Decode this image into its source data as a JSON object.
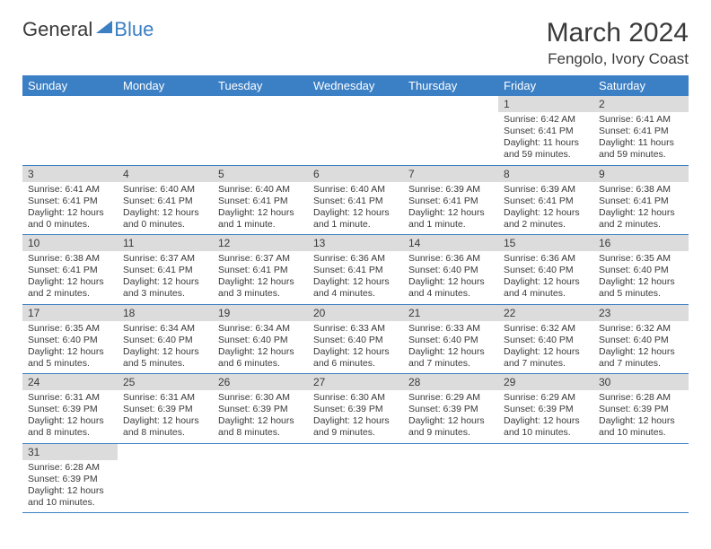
{
  "brand": {
    "part1": "General",
    "part2": "Blue"
  },
  "title": "March 2024",
  "location": "Fengolo, Ivory Coast",
  "headers": [
    "Sunday",
    "Monday",
    "Tuesday",
    "Wednesday",
    "Thursday",
    "Friday",
    "Saturday"
  ],
  "colors": {
    "header_bg": "#3b7fc4",
    "header_text": "#ffffff",
    "daynum_bg": "#dcdcdc",
    "text": "#3a3a3a",
    "border": "#3b7fc4"
  },
  "weeks": [
    [
      null,
      null,
      null,
      null,
      null,
      {
        "num": "1",
        "sunrise": "6:42 AM",
        "sunset": "6:41 PM",
        "daylight": "11 hours and 59 minutes."
      },
      {
        "num": "2",
        "sunrise": "6:41 AM",
        "sunset": "6:41 PM",
        "daylight": "11 hours and 59 minutes."
      }
    ],
    [
      {
        "num": "3",
        "sunrise": "6:41 AM",
        "sunset": "6:41 PM",
        "daylight": "12 hours and 0 minutes."
      },
      {
        "num": "4",
        "sunrise": "6:40 AM",
        "sunset": "6:41 PM",
        "daylight": "12 hours and 0 minutes."
      },
      {
        "num": "5",
        "sunrise": "6:40 AM",
        "sunset": "6:41 PM",
        "daylight": "12 hours and 1 minute."
      },
      {
        "num": "6",
        "sunrise": "6:40 AM",
        "sunset": "6:41 PM",
        "daylight": "12 hours and 1 minute."
      },
      {
        "num": "7",
        "sunrise": "6:39 AM",
        "sunset": "6:41 PM",
        "daylight": "12 hours and 1 minute."
      },
      {
        "num": "8",
        "sunrise": "6:39 AM",
        "sunset": "6:41 PM",
        "daylight": "12 hours and 2 minutes."
      },
      {
        "num": "9",
        "sunrise": "6:38 AM",
        "sunset": "6:41 PM",
        "daylight": "12 hours and 2 minutes."
      }
    ],
    [
      {
        "num": "10",
        "sunrise": "6:38 AM",
        "sunset": "6:41 PM",
        "daylight": "12 hours and 2 minutes."
      },
      {
        "num": "11",
        "sunrise": "6:37 AM",
        "sunset": "6:41 PM",
        "daylight": "12 hours and 3 minutes."
      },
      {
        "num": "12",
        "sunrise": "6:37 AM",
        "sunset": "6:41 PM",
        "daylight": "12 hours and 3 minutes."
      },
      {
        "num": "13",
        "sunrise": "6:36 AM",
        "sunset": "6:41 PM",
        "daylight": "12 hours and 4 minutes."
      },
      {
        "num": "14",
        "sunrise": "6:36 AM",
        "sunset": "6:40 PM",
        "daylight": "12 hours and 4 minutes."
      },
      {
        "num": "15",
        "sunrise": "6:36 AM",
        "sunset": "6:40 PM",
        "daylight": "12 hours and 4 minutes."
      },
      {
        "num": "16",
        "sunrise": "6:35 AM",
        "sunset": "6:40 PM",
        "daylight": "12 hours and 5 minutes."
      }
    ],
    [
      {
        "num": "17",
        "sunrise": "6:35 AM",
        "sunset": "6:40 PM",
        "daylight": "12 hours and 5 minutes."
      },
      {
        "num": "18",
        "sunrise": "6:34 AM",
        "sunset": "6:40 PM",
        "daylight": "12 hours and 5 minutes."
      },
      {
        "num": "19",
        "sunrise": "6:34 AM",
        "sunset": "6:40 PM",
        "daylight": "12 hours and 6 minutes."
      },
      {
        "num": "20",
        "sunrise": "6:33 AM",
        "sunset": "6:40 PM",
        "daylight": "12 hours and 6 minutes."
      },
      {
        "num": "21",
        "sunrise": "6:33 AM",
        "sunset": "6:40 PM",
        "daylight": "12 hours and 7 minutes."
      },
      {
        "num": "22",
        "sunrise": "6:32 AM",
        "sunset": "6:40 PM",
        "daylight": "12 hours and 7 minutes."
      },
      {
        "num": "23",
        "sunrise": "6:32 AM",
        "sunset": "6:40 PM",
        "daylight": "12 hours and 7 minutes."
      }
    ],
    [
      {
        "num": "24",
        "sunrise": "6:31 AM",
        "sunset": "6:39 PM",
        "daylight": "12 hours and 8 minutes."
      },
      {
        "num": "25",
        "sunrise": "6:31 AM",
        "sunset": "6:39 PM",
        "daylight": "12 hours and 8 minutes."
      },
      {
        "num": "26",
        "sunrise": "6:30 AM",
        "sunset": "6:39 PM",
        "daylight": "12 hours and 8 minutes."
      },
      {
        "num": "27",
        "sunrise": "6:30 AM",
        "sunset": "6:39 PM",
        "daylight": "12 hours and 9 minutes."
      },
      {
        "num": "28",
        "sunrise": "6:29 AM",
        "sunset": "6:39 PM",
        "daylight": "12 hours and 9 minutes."
      },
      {
        "num": "29",
        "sunrise": "6:29 AM",
        "sunset": "6:39 PM",
        "daylight": "12 hours and 10 minutes."
      },
      {
        "num": "30",
        "sunrise": "6:28 AM",
        "sunset": "6:39 PM",
        "daylight": "12 hours and 10 minutes."
      }
    ],
    [
      {
        "num": "31",
        "sunrise": "6:28 AM",
        "sunset": "6:39 PM",
        "daylight": "12 hours and 10 minutes."
      },
      null,
      null,
      null,
      null,
      null,
      null
    ]
  ]
}
